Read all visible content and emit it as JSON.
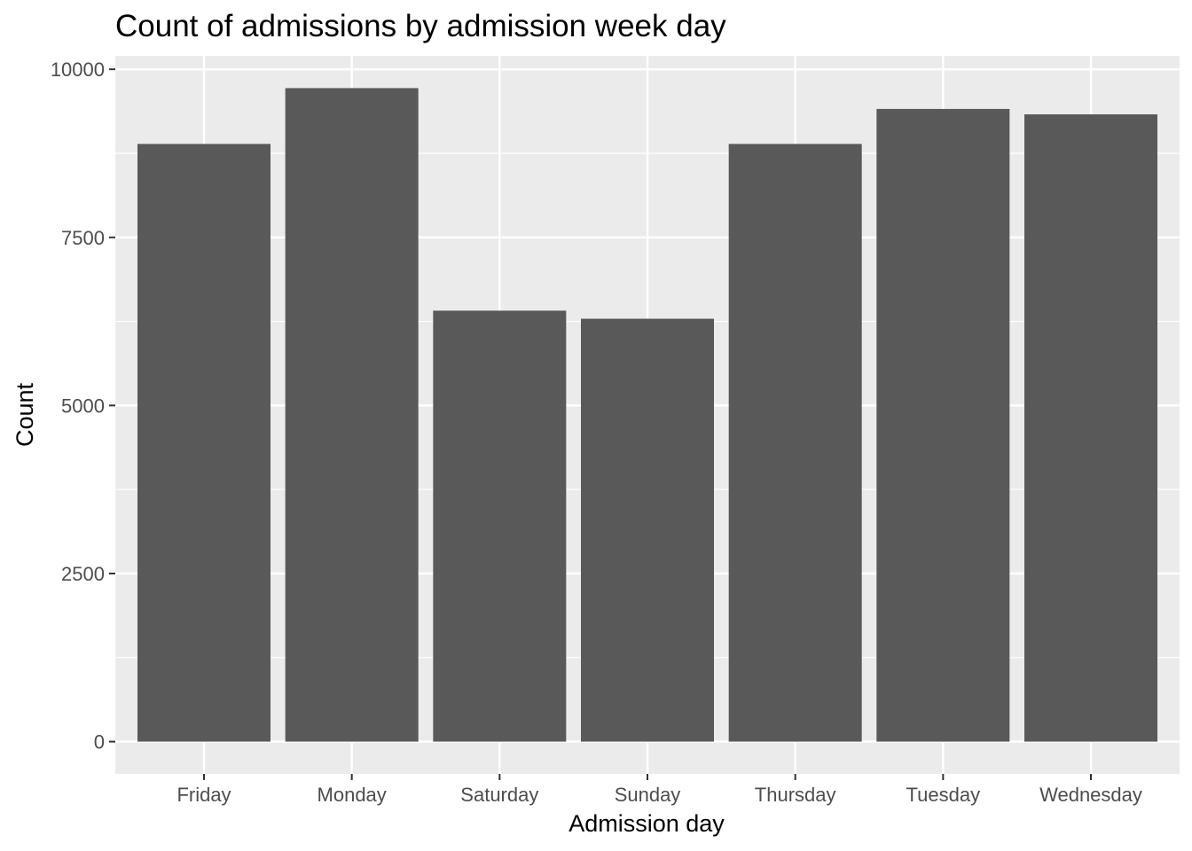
{
  "chart_data": {
    "type": "bar",
    "title": "Count of admissions by admission week day",
    "xlabel": "Admission day",
    "ylabel": "Count",
    "categories": [
      "Friday",
      "Monday",
      "Saturday",
      "Sunday",
      "Thursday",
      "Tuesday",
      "Wednesday"
    ],
    "values": [
      8890,
      9720,
      6410,
      6290,
      8890,
      9410,
      9330
    ],
    "ylim": [
      -480,
      10200
    ],
    "yticks": [
      0,
      2500,
      5000,
      7500,
      10000
    ],
    "grid": true,
    "legend": "none",
    "colors": {
      "bar": "#595959",
      "panel": "#ebebeb",
      "grid": "#ffffff",
      "tick_text": "#4d4d4d",
      "tick_mark": "#333333"
    }
  }
}
